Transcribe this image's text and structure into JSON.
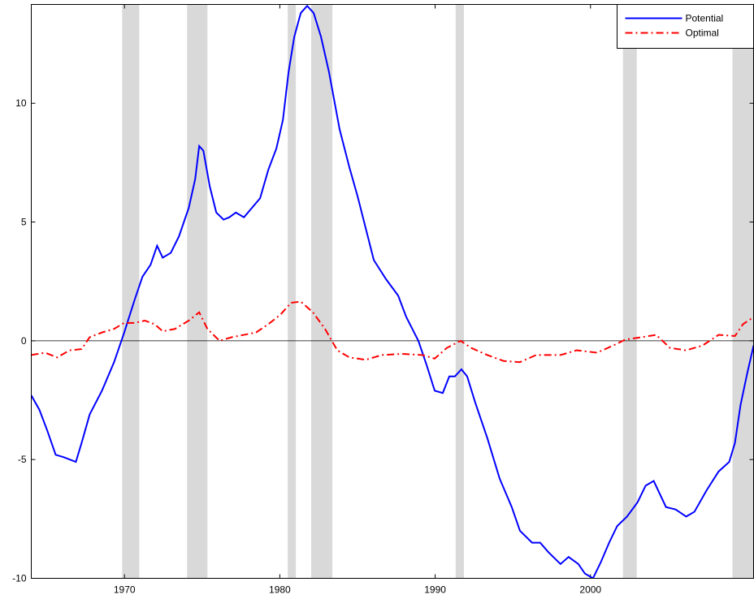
{
  "chart_data": {
    "type": "line",
    "xlim": [
      1964,
      2010.5
    ],
    "xticks": [
      1970,
      1980,
      1990,
      2000
    ],
    "ylim": [
      -10,
      14.16
    ],
    "yticks": [
      -10,
      -5,
      0,
      5,
      10
    ],
    "grid": false,
    "zero_line": true,
    "legend": "upper-right",
    "shaded_color": "#d9d9d9",
    "shaded_regions": [
      [
        1969.85,
        1970.95
      ],
      [
        1974.03,
        1975.34
      ],
      [
        1980.51,
        1981.03
      ],
      [
        1982.02,
        1983.38
      ],
      [
        1991.32,
        1991.85
      ],
      [
        2002.09,
        2002.98
      ],
      [
        2009.14,
        2010.5
      ]
    ],
    "series": [
      {
        "name": "Potential",
        "color": "#0000ff",
        "style": "solid",
        "x": [
          1964.0,
          1964.52,
          1965.04,
          1965.57,
          1966.09,
          1966.87,
          1967.24,
          1967.76,
          1968.55,
          1969.33,
          1969.96,
          1970.64,
          1971.16,
          1971.68,
          1972.1,
          1972.46,
          1972.98,
          1973.51,
          1974.14,
          1974.55,
          1974.81,
          1975.08,
          1975.49,
          1975.91,
          1976.38,
          1976.75,
          1977.17,
          1977.69,
          1978.21,
          1978.73,
          1979.26,
          1979.78,
          1980.2,
          1980.56,
          1980.93,
          1981.35,
          1981.76,
          1982.18,
          1982.65,
          1983.17,
          1983.85,
          1984.48,
          1985.0,
          1986.05,
          1986.83,
          1987.62,
          1988.14,
          1988.92,
          1989.44,
          1989.97,
          1990.49,
          1990.91,
          1991.27,
          1991.69,
          1992.06,
          1992.58,
          1993.36,
          1994.15,
          1994.93,
          1995.46,
          1996.24,
          1996.76,
          1997.29,
          1998.07,
          1998.59,
          1999.22,
          1999.64,
          2000.16,
          2000.68,
          2001.2,
          2001.72,
          2002.35,
          2003.03,
          2003.55,
          2004.07,
          2004.86,
          2005.48,
          2006.16,
          2006.69,
          2007.47,
          2008.25,
          2008.93,
          2009.3,
          2009.66,
          2010.08,
          2010.5
        ],
        "values": [
          -2.3,
          -2.9,
          -3.8,
          -4.8,
          -4.9,
          -5.1,
          -4.3,
          -3.1,
          -2.1,
          -0.9,
          0.3,
          1.7,
          2.7,
          3.2,
          4.0,
          3.5,
          3.7,
          4.4,
          5.6,
          6.8,
          8.2,
          8.0,
          6.5,
          5.4,
          5.1,
          5.2,
          5.4,
          5.2,
          5.6,
          6.0,
          7.2,
          8.1,
          9.3,
          11.3,
          12.8,
          13.8,
          14.1,
          13.8,
          12.8,
          11.3,
          8.9,
          7.3,
          6.1,
          3.4,
          2.6,
          1.9,
          1.0,
          0.0,
          -1.0,
          -2.1,
          -2.2,
          -1.5,
          -1.5,
          -1.2,
          -1.5,
          -2.6,
          -4.1,
          -5.8,
          -7.0,
          -8.0,
          -8.5,
          -8.5,
          -8.9,
          -9.4,
          -9.1,
          -9.4,
          -9.8,
          -10.0,
          -9.3,
          -8.5,
          -7.8,
          -7.4,
          -6.8,
          -6.1,
          -5.9,
          -7.0,
          -7.1,
          -7.4,
          -7.2,
          -6.3,
          -5.5,
          -5.1,
          -4.3,
          -2.7,
          -1.4,
          -0.2
        ]
      },
      {
        "name": "Optimal",
        "color": "#ff0000",
        "style": "dash-dot",
        "x": [
          1964.0,
          1964.89,
          1965.67,
          1966.46,
          1967.24,
          1967.76,
          1968.55,
          1969.33,
          1969.96,
          1970.64,
          1971.31,
          1971.94,
          1972.46,
          1973.25,
          1974.14,
          1974.81,
          1975.34,
          1976.12,
          1976.9,
          1977.69,
          1978.47,
          1979.26,
          1980.04,
          1980.72,
          1981.35,
          1982.13,
          1982.91,
          1983.7,
          1984.48,
          1985.53,
          1986.57,
          1987.88,
          1989.18,
          1989.97,
          1990.75,
          1991.64,
          1992.32,
          1993.36,
          1994.41,
          1995.45,
          1996.5,
          1998.07,
          1999.11,
          2000.42,
          2001.46,
          2002.24,
          2003.29,
          2004.23,
          2005.12,
          2006.16,
          2007.21,
          2008.25,
          2009.3,
          2009.82,
          2010.5
        ],
        "values": [
          -0.6,
          -0.5,
          -0.7,
          -0.4,
          -0.35,
          0.15,
          0.35,
          0.5,
          0.75,
          0.75,
          0.85,
          0.7,
          0.4,
          0.5,
          0.85,
          1.2,
          0.5,
          0.0,
          0.15,
          0.25,
          0.35,
          0.7,
          1.1,
          1.6,
          1.65,
          1.2,
          0.5,
          -0.4,
          -0.7,
          -0.8,
          -0.6,
          -0.55,
          -0.6,
          -0.75,
          -0.3,
          0.0,
          -0.3,
          -0.6,
          -0.85,
          -0.9,
          -0.6,
          -0.6,
          -0.4,
          -0.5,
          -0.2,
          0.05,
          0.15,
          0.25,
          -0.3,
          -0.4,
          -0.2,
          0.25,
          0.2,
          0.7,
          1.0
        ]
      }
    ]
  }
}
